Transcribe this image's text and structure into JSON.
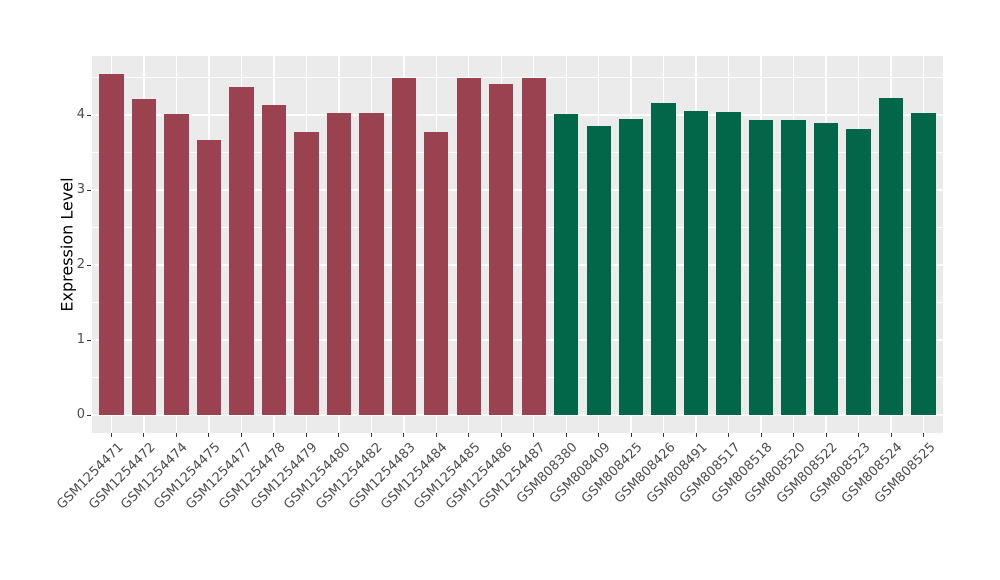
{
  "figure": {
    "background": "#FFFFFF",
    "panel_background": "#EBEBEB",
    "gridline_color": "#FFFFFF",
    "tick_mark_color": "#333333",
    "tick_label_color": "#4D4D4D",
    "axis_title_color": "#000000"
  },
  "chart_data": {
    "type": "bar",
    "title": "",
    "xlabel": "",
    "ylabel": "Expression Level",
    "grid": "on",
    "legend": "none",
    "yticks": [
      0,
      1,
      2,
      3,
      4
    ],
    "yticks_minor": [
      0.5,
      1.5,
      2.5,
      3.5,
      4.5
    ],
    "ylim": [
      -0.24,
      4.79
    ],
    "categories": [
      "GSM1254471",
      "GSM1254472",
      "GSM1254474",
      "GSM1254475",
      "GSM1254477",
      "GSM1254478",
      "GSM1254479",
      "GSM1254480",
      "GSM1254482",
      "GSM1254483",
      "GSM1254484",
      "GSM1254485",
      "GSM1254486",
      "GSM1254487",
      "GSM808380",
      "GSM808409",
      "GSM808425",
      "GSM808426",
      "GSM808491",
      "GSM808517",
      "GSM808518",
      "GSM808520",
      "GSM808522",
      "GSM808523",
      "GSM808524",
      "GSM808525"
    ],
    "values": [
      4.55,
      4.22,
      4.01,
      3.67,
      4.37,
      4.13,
      3.78,
      4.03,
      4.03,
      4.49,
      3.77,
      4.5,
      4.42,
      4.5,
      4.02,
      3.85,
      3.95,
      4.16,
      4.05,
      4.04,
      3.94,
      3.94,
      3.9,
      3.82,
      4.23,
      4.03
    ],
    "series": [
      {
        "color": "#9A4250",
        "count": 14
      },
      {
        "color": "#026649",
        "count": 12
      }
    ]
  }
}
